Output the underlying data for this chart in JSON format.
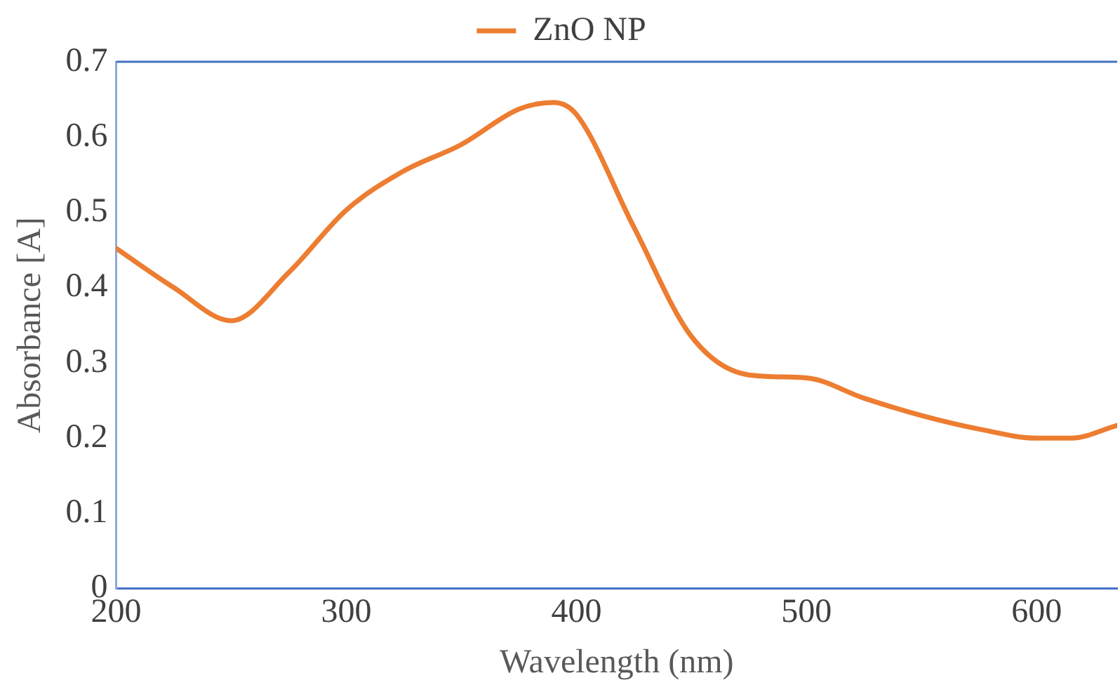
{
  "chart_data": {
    "type": "line",
    "xlabel": "Wavelength (nm)",
    "ylabel": "Absorbance [A]",
    "legend": "top",
    "grid": false,
    "marker": "none",
    "line_style": "solid",
    "xlim": [
      200,
      635
    ],
    "xticks": [
      200,
      300,
      400,
      500,
      600
    ],
    "ylim": [
      0,
      0.7
    ],
    "yticks": [
      0,
      0.1,
      0.2,
      0.3,
      0.4,
      0.5,
      0.6,
      0.7
    ],
    "x": [
      200,
      225,
      250,
      275,
      300,
      325,
      350,
      375,
      390,
      400,
      425,
      450,
      475,
      500,
      525,
      550,
      575,
      600,
      615,
      635
    ],
    "series": [
      {
        "name": "ZnO NP",
        "color": "#ed7d31",
        "values": [
          0.452,
          0.4,
          0.356,
          0.42,
          0.503,
          0.555,
          0.59,
          0.637,
          0.646,
          0.63,
          0.48,
          0.335,
          0.284,
          0.28,
          0.253,
          0.23,
          0.212,
          0.2,
          0.2,
          0.217
        ]
      }
    ]
  }
}
